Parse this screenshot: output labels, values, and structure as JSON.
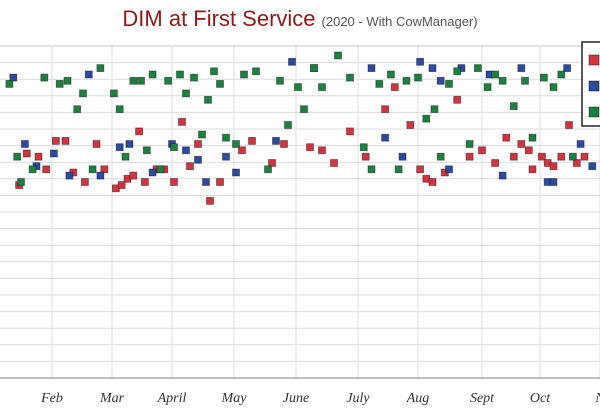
{
  "chart_data": {
    "type": "scatter",
    "title": "DIM at First Service",
    "subtitle": "(2020 - With CowManager)",
    "x_ticks": [
      "Feb",
      "Mar",
      "April",
      "May",
      "June",
      "July",
      "Aug",
      "Sept",
      "Oct",
      "N"
    ],
    "grid": true,
    "legend_placement": "top-right",
    "series": [
      {
        "color": "#d0343f",
        "points": [
          [
            "Jan 15",
            61
          ],
          [
            "Jan 19",
            71
          ],
          [
            "Jan 25",
            70
          ],
          [
            "Jan 29",
            66
          ],
          [
            "Feb 03",
            75
          ],
          [
            "Feb 08",
            75
          ],
          [
            "Feb 12",
            65
          ],
          [
            "Feb 18",
            62
          ],
          [
            "Feb 24",
            74
          ],
          [
            "Feb 28",
            66
          ],
          [
            "Mar 03",
            60
          ],
          [
            "Mar 06",
            61
          ],
          [
            "Mar 09",
            63
          ],
          [
            "Mar 12",
            64
          ],
          [
            "Mar 15",
            78
          ],
          [
            "Mar 18",
            62
          ],
          [
            "Mar 24",
            66
          ],
          [
            "Mar 28",
            66
          ],
          [
            "Apr 02",
            62
          ],
          [
            "Apr 06",
            81
          ],
          [
            "Apr 10",
            67
          ],
          [
            "Apr 14",
            74
          ],
          [
            "Apr 20",
            56
          ],
          [
            "Apr 25",
            62
          ],
          [
            "May 05",
            72
          ],
          [
            "May 10",
            75
          ],
          [
            "May 20",
            68
          ],
          [
            "May 26",
            74
          ],
          [
            "Jun 08",
            73
          ],
          [
            "Jun 14",
            72
          ],
          [
            "Jun 20",
            68
          ],
          [
            "Jun 28",
            78
          ],
          [
            "Jul 05",
            70
          ],
          [
            "Jul 15",
            85
          ],
          [
            "Jul 20",
            92
          ],
          [
            "Jul 28",
            80
          ],
          [
            "Aug 02",
            66
          ],
          [
            "Aug 05",
            63
          ],
          [
            "Aug 08",
            62
          ],
          [
            "Aug 14",
            65
          ],
          [
            "Aug 20",
            88
          ],
          [
            "Aug 26",
            70
          ],
          [
            "Sep 01",
            72
          ],
          [
            "Sep 08",
            68
          ],
          [
            "Sep 14",
            76
          ],
          [
            "Sep 18",
            70
          ],
          [
            "Sep 22",
            74
          ],
          [
            "Sep 26",
            72
          ],
          [
            "Sep 28",
            66
          ],
          [
            "Oct 02",
            70
          ],
          [
            "Oct 05",
            68
          ],
          [
            "Oct 08",
            67
          ],
          [
            "Oct 12",
            70
          ],
          [
            "Oct 16",
            80
          ],
          [
            "Oct 20",
            68
          ],
          [
            "Oct 24",
            70
          ],
          [
            "Oct 28",
            102
          ]
        ]
      },
      {
        "color": "#2c4aa0",
        "points": [
          [
            "Jan 12",
            95
          ],
          [
            "Jan 18",
            74
          ],
          [
            "Jan 24",
            67
          ],
          [
            "Feb 02",
            71
          ],
          [
            "Feb 10",
            64
          ],
          [
            "Feb 20",
            96
          ],
          [
            "Feb 26",
            64
          ],
          [
            "Mar 05",
            73
          ],
          [
            "Mar 10",
            74
          ],
          [
            "Mar 22",
            65
          ],
          [
            "Apr 01",
            74
          ],
          [
            "Apr 08",
            72
          ],
          [
            "Apr 14",
            69
          ],
          [
            "Apr 18",
            62
          ],
          [
            "Apr 28",
            70
          ],
          [
            "May 02",
            65
          ],
          [
            "May 22",
            75
          ],
          [
            "May 30",
            100
          ],
          [
            "Jun 10",
            98
          ],
          [
            "Jul 08",
            98
          ],
          [
            "Jul 15",
            76
          ],
          [
            "Jul 24",
            70
          ],
          [
            "Aug 02",
            100
          ],
          [
            "Aug 08",
            98
          ],
          [
            "Aug 12",
            94
          ],
          [
            "Aug 16",
            66
          ],
          [
            "Aug 22",
            98
          ],
          [
            "Sep 05",
            96
          ],
          [
            "Sep 12",
            64
          ],
          [
            "Sep 22",
            98
          ],
          [
            "Oct 05",
            62
          ],
          [
            "Oct 08",
            62
          ],
          [
            "Oct 15",
            98
          ],
          [
            "Oct 22",
            74
          ],
          [
            "Oct 28",
            67
          ]
        ]
      },
      {
        "color": "#1e8040",
        "points": [
          [
            "Jan 10",
            93
          ],
          [
            "Jan 14",
            70
          ],
          [
            "Jan 16",
            62
          ],
          [
            "Jan 22",
            66
          ],
          [
            "Jan 28",
            95
          ],
          [
            "Feb 05",
            93
          ],
          [
            "Feb 09",
            94
          ],
          [
            "Feb 14",
            85
          ],
          [
            "Feb 17",
            90
          ],
          [
            "Feb 22",
            66
          ],
          [
            "Feb 26",
            98
          ],
          [
            "Mar 02",
            90
          ],
          [
            "Mar 05",
            85
          ],
          [
            "Mar 08",
            70
          ],
          [
            "Mar 12",
            94
          ],
          [
            "Mar 16",
            94
          ],
          [
            "Mar 19",
            72
          ],
          [
            "Mar 22",
            96
          ],
          [
            "Mar 26",
            66
          ],
          [
            "Mar 30",
            94
          ],
          [
            "Apr 02",
            73
          ],
          [
            "Apr 05",
            96
          ],
          [
            "Apr 08",
            90
          ],
          [
            "Apr 12",
            95
          ],
          [
            "Apr 16",
            77
          ],
          [
            "Apr 19",
            88
          ],
          [
            "Apr 22",
            97
          ],
          [
            "Apr 25",
            93
          ],
          [
            "Apr 28",
            76
          ],
          [
            "May 02",
            74
          ],
          [
            "May 06",
            96
          ],
          [
            "May 12",
            97
          ],
          [
            "May 18",
            66
          ],
          [
            "May 24",
            94
          ],
          [
            "May 28",
            80
          ],
          [
            "Jun 02",
            92
          ],
          [
            "Jun 05",
            85
          ],
          [
            "Jun 10",
            98
          ],
          [
            "Jun 14",
            92
          ],
          [
            "Jun 22",
            102
          ],
          [
            "Jun 28",
            95
          ],
          [
            "Jul 04",
            73
          ],
          [
            "Jul 08",
            66
          ],
          [
            "Jul 12",
            93
          ],
          [
            "Jul 18",
            96
          ],
          [
            "Jul 22",
            66
          ],
          [
            "Jul 26",
            94
          ],
          [
            "Aug 01",
            95
          ],
          [
            "Aug 05",
            82
          ],
          [
            "Aug 09",
            85
          ],
          [
            "Aug 12",
            70
          ],
          [
            "Aug 16",
            93
          ],
          [
            "Aug 20",
            97
          ],
          [
            "Aug 26",
            74
          ],
          [
            "Aug 30",
            98
          ],
          [
            "Sep 04",
            92
          ],
          [
            "Sep 08",
            96
          ],
          [
            "Sep 12",
            94
          ],
          [
            "Sep 18",
            86
          ],
          [
            "Sep 24",
            94
          ],
          [
            "Sep 28",
            76
          ],
          [
            "Oct 03",
            95
          ],
          [
            "Oct 08",
            92
          ],
          [
            "Oct 12",
            96
          ],
          [
            "Oct 18",
            70
          ],
          [
            "Oct 25",
            99
          ]
        ]
      }
    ]
  }
}
